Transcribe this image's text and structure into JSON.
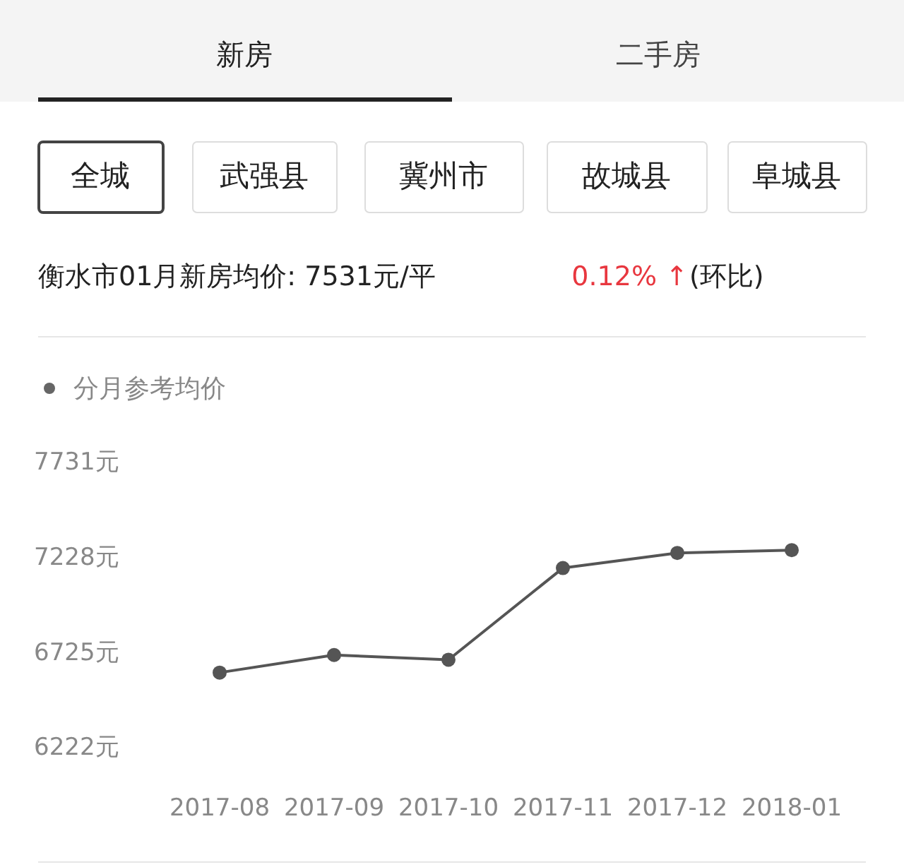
{
  "chart_data": {
    "type": "line",
    "title": "分月参考均价",
    "categories": [
      "2017-08",
      "2017-09",
      "2017-10",
      "2017-11",
      "2017-12",
      "2018-01"
    ],
    "series": [
      {
        "color": "#555555",
        "values": [
          6623,
          6716,
          6691,
          7176,
          7256,
          7271
        ]
      }
    ],
    "ylim": [
      6222,
      7731
    ],
    "yticks": [
      {
        "value": 6222,
        "label": "6222元"
      },
      {
        "value": 6725,
        "label": "6725元"
      },
      {
        "value": 7228,
        "label": "7228元"
      },
      {
        "value": 7731,
        "label": "7731元"
      }
    ],
    "marker": "circle",
    "grid": false,
    "annotations": [
      "新房",
      "二手房",
      "全城",
      "武强县",
      "冀州市",
      "故城县",
      "阜城县",
      "衡水市01月新房均价: 7531元/平",
      "0.12% ↑",
      "(环比)"
    ]
  }
}
